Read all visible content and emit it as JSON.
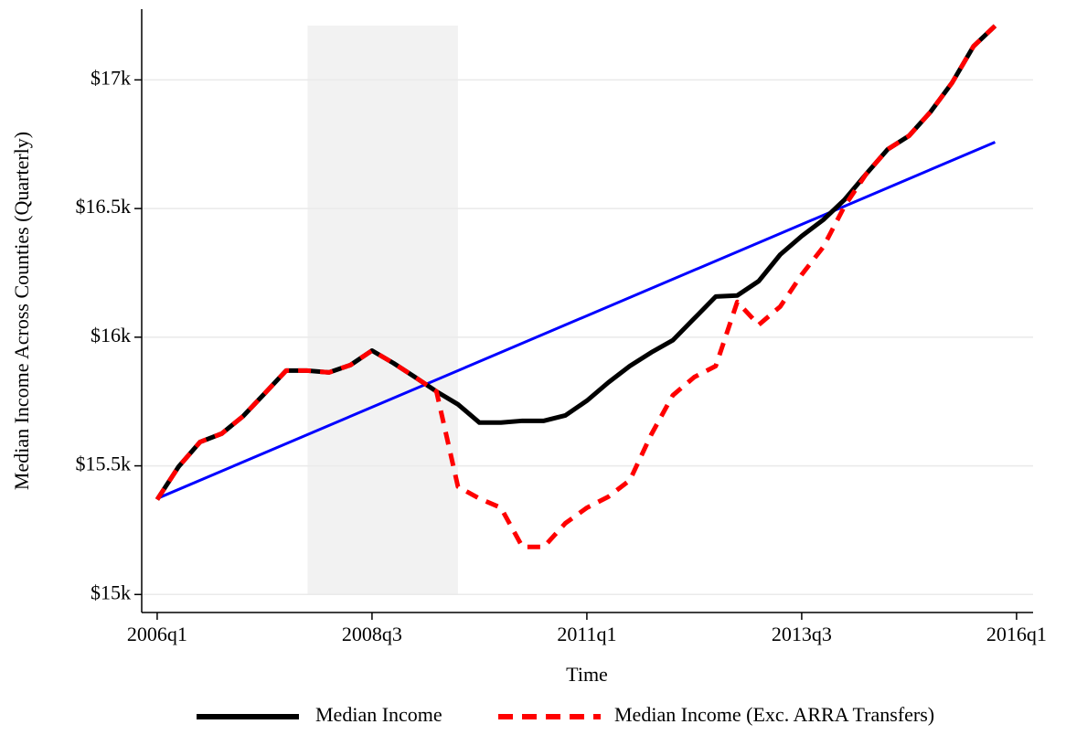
{
  "chart_data": {
    "type": "line",
    "ylabel": "Median Income Across Counties (Quarterly)",
    "xlabel": "Time",
    "xlim": [
      183.28,
      224.77
    ],
    "ylim": [
      14930,
      17275
    ],
    "xticks": [
      {
        "value": 184,
        "label": "2006q1"
      },
      {
        "value": 194,
        "label": "2008q3"
      },
      {
        "value": 204,
        "label": "2011q1"
      },
      {
        "value": 214,
        "label": "2013q3"
      },
      {
        "value": 224,
        "label": "2016q1"
      }
    ],
    "yticks": [
      {
        "value": 15000,
        "label": "$15k"
      },
      {
        "value": 15500,
        "label": "$15.5k"
      },
      {
        "value": 16000,
        "label": "$16k"
      },
      {
        "value": 16500,
        "label": "$16.5k"
      },
      {
        "value": 17000,
        "label": "$17k"
      }
    ],
    "grid": true,
    "shaded_region": [
      191,
      198
    ],
    "x": [
      184,
      185,
      186,
      187,
      188,
      189,
      190,
      191,
      192,
      193,
      194,
      195,
      196,
      197,
      198,
      199,
      200,
      201,
      202,
      203,
      204,
      205,
      206,
      207,
      208,
      209,
      210,
      211,
      212,
      213,
      214,
      215,
      216,
      217,
      218,
      219,
      220,
      221,
      222,
      223
    ],
    "series": [
      {
        "name": "Median Income",
        "color": "#000000",
        "dash": false,
        "values": [
          15369,
          15497,
          15593,
          15625,
          15693,
          15781,
          15870,
          15870,
          15863,
          15892,
          15948,
          15899,
          15845,
          15789,
          15739,
          15668,
          15668,
          15675,
          15675,
          15696,
          15753,
          15824,
          15888,
          15941,
          15988,
          16073,
          16158,
          16162,
          16218,
          16321,
          16393,
          16456,
          16535,
          16634,
          16730,
          16783,
          16876,
          16989,
          17131,
          17210
        ]
      },
      {
        "name": "Median Income (Exc. ARRA Transfers)",
        "color": "#ff0000",
        "dash": true,
        "values": [
          15369,
          15497,
          15593,
          15625,
          15693,
          15781,
          15870,
          15870,
          15863,
          15892,
          15948,
          15899,
          15845,
          15789,
          15419,
          15373,
          15337,
          15185,
          15185,
          15277,
          15337,
          15380,
          15444,
          15622,
          15774,
          15845,
          15888,
          16137,
          16048,
          16119,
          16243,
          16350,
          16510,
          16634,
          16730,
          16783,
          16876,
          16989,
          17131,
          17210
        ]
      }
    ],
    "trend": {
      "color": "#0000ff",
      "x": [
        184,
        223
      ],
      "values": [
        15373,
        16758
      ]
    }
  }
}
